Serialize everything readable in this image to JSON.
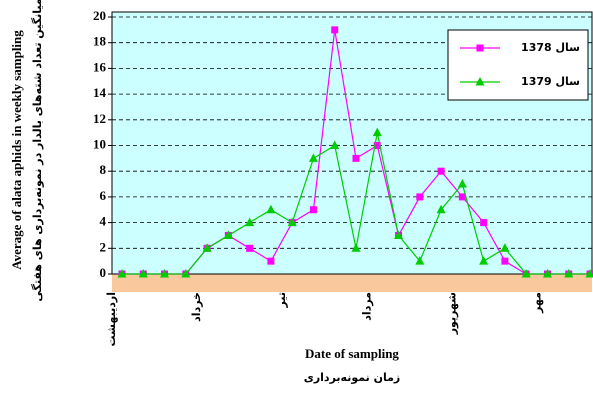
{
  "chart_data": {
    "type": "line",
    "ylabel": "Average of alata aphids in weekly sampling",
    "ylabel_fa": "میانگین تعداد شته‌های بالدار در نمونه‌برداری های هفتگی",
    "xlabel": "Date of sampling",
    "xlabel_fa": "زمان نمونه‌برداری",
    "categories": [
      "اردیبهشت",
      null,
      null,
      null,
      "خرداد",
      null,
      null,
      null,
      "تیر",
      null,
      null,
      null,
      "مرداد",
      null,
      null,
      null,
      "شهریور",
      null,
      null,
      null,
      "مهر",
      null,
      null
    ],
    "series": [
      {
        "name": "سال 1378",
        "color": "#ff00ff",
        "marker": "square",
        "values": [
          0,
          0,
          0,
          0,
          2,
          3,
          2,
          1,
          4,
          5,
          19,
          9,
          10,
          3,
          6,
          8,
          6,
          4,
          1,
          0,
          0,
          0,
          0
        ]
      },
      {
        "name": "سال 1379",
        "color": "#00cc00",
        "marker": "triangle",
        "values": [
          0,
          0,
          0,
          0,
          2,
          3,
          4,
          5,
          4,
          9,
          10,
          2,
          11,
          3,
          1,
          5,
          7,
          1,
          2,
          0,
          0,
          0,
          0
        ]
      }
    ],
    "ylim": [
      0,
      20
    ],
    "yticks": [
      0,
      2,
      4,
      6,
      8,
      10,
      12,
      14,
      16,
      18,
      20
    ],
    "grid": true,
    "legend": "upper right"
  }
}
